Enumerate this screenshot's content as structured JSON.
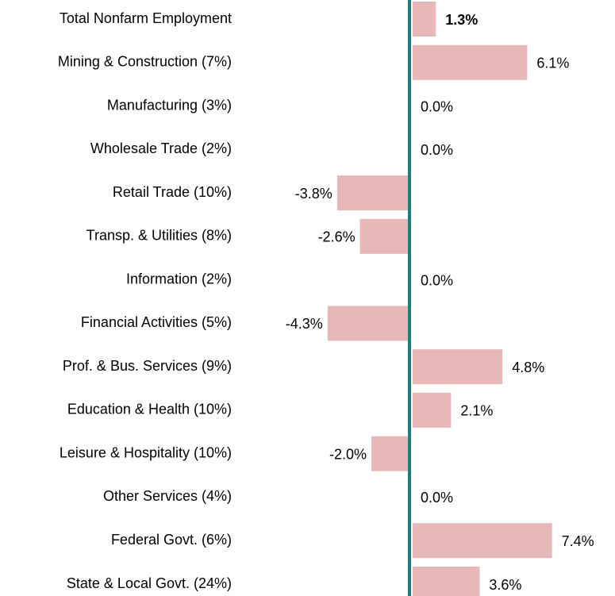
{
  "chart_data": {
    "type": "hbar",
    "categories": [
      "Total Nonfarm Employment",
      "Mining & Construction (7%)",
      "Manufacturing (3%)",
      "Wholesale Trade (2%)",
      "Retail Trade (10%)",
      "Transp. & Utilities (8%)",
      "Information (2%)",
      "Financial Activities (5%)",
      "Prof. & Bus. Services (9%)",
      "Education & Health (10%)",
      "Leisure & Hospitality (10%)",
      "Other Services (4%)",
      "Federal Govt. (6%)",
      "State & Local Govt. (24%)"
    ],
    "values": [
      1.3,
      6.1,
      0.0,
      0.0,
      -3.8,
      -2.6,
      0.0,
      -4.3,
      4.8,
      2.1,
      -2.0,
      0.0,
      7.4,
      3.6
    ],
    "value_labels": [
      "1.3%",
      "6.1%",
      "0.0%",
      "0.0%",
      "-3.8%",
      "-2.6%",
      "0.0%",
      "-4.3%",
      "4.8%",
      "2.1%",
      "-2.0%",
      "0.0%",
      "7.4%",
      "3.6%"
    ],
    "color": "#e6b8b7",
    "axis_color": "#1b7f79"
  }
}
